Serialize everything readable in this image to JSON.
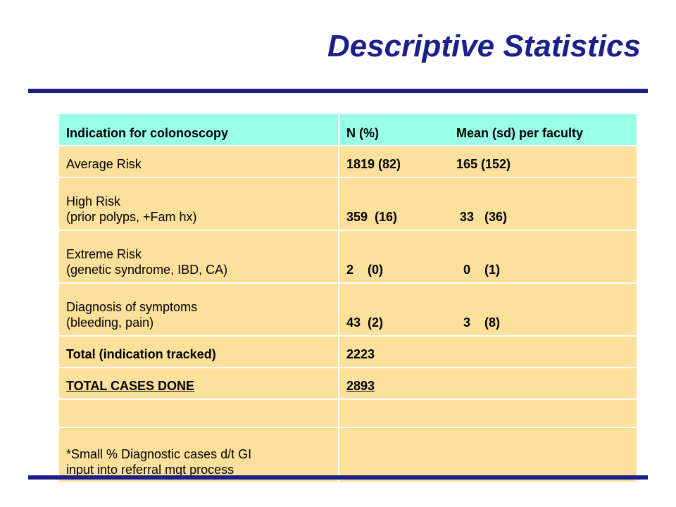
{
  "slide": {
    "title": "Descriptive Statistics"
  },
  "table": {
    "header": {
      "col1": "Indication for colonoscopy",
      "col2": "N (%)",
      "col3": "Mean (sd) per faculty"
    },
    "rows": [
      {
        "label_line1": "Average Risk",
        "label_line2": "",
        "n": "1819 (82)",
        "mean": "165 (152)"
      },
      {
        "label_line1": "High Risk",
        "label_line2": "(prior polyps, +Fam hx)",
        "n": "359  (16)",
        "mean": " 33   (36)"
      },
      {
        "label_line1": "Extreme Risk",
        "label_line2": "(genetic syndrome, IBD, CA)",
        "n": "2    (0)",
        "mean": "  0    (1)"
      },
      {
        "label_line1": "Diagnosis of symptoms",
        "label_line2": "(bleeding, pain)",
        "n": "43  (2)",
        "mean": "  3    (8)"
      }
    ],
    "total_tracked": {
      "label": "Total (indication tracked)",
      "value": "2223"
    },
    "total_done": {
      "label": "TOTAL CASES DONE",
      "value": "2893"
    },
    "footnote": {
      "line1": "*Small % Diagnostic cases d/t GI",
      "line2": "input into referral mgt process"
    }
  }
}
